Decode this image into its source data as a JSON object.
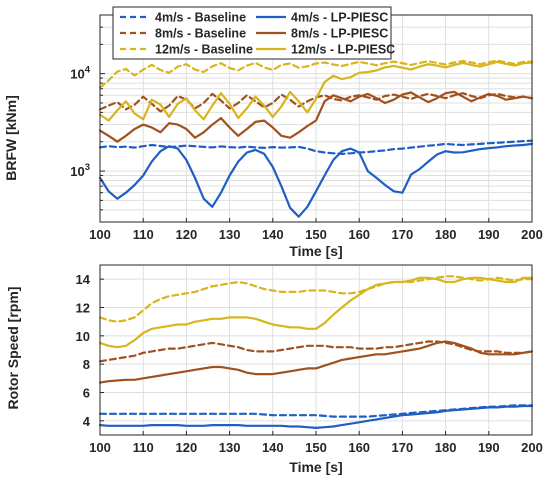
{
  "chart_data": [
    {
      "type": "line",
      "xlabel": "Time [s]",
      "ylabel": "BRFW [kNm]",
      "xlim": [
        100,
        200
      ],
      "ylim": [
        300,
        40000
      ],
      "yscale": "log",
      "xticks": [
        100,
        110,
        120,
        130,
        140,
        150,
        160,
        170,
        180,
        190,
        200
      ],
      "xtick_labels": [
        "100",
        "110",
        "120",
        "130",
        "140",
        "150",
        "160",
        "170",
        "180",
        "190",
        "200"
      ],
      "ytick_labels": [
        {
          "value": 1000,
          "base": "10",
          "exp": "3"
        },
        {
          "value": 10000,
          "base": "10",
          "exp": "4"
        }
      ],
      "grid": true,
      "legend": {
        "placement": "top-center",
        "columns": 2,
        "entries": [
          {
            "label": "4m/s - Baseline",
            "color": "#1f5fc4",
            "dash": true
          },
          {
            "label": "4m/s - LP-PIESC",
            "color": "#1f5fc4",
            "dash": false
          },
          {
            "label": "8m/s - Baseline",
            "color": "#a0521e",
            "dash": true
          },
          {
            "label": "8m/s - LP-PIESC",
            "color": "#a0521e",
            "dash": false
          },
          {
            "label": "12m/s - Baseline",
            "color": "#d8b51c",
            "dash": true
          },
          {
            "label": "12m/s - LP-PIESC",
            "color": "#d8b51c",
            "dash": false
          }
        ]
      },
      "x": [
        100,
        102,
        104,
        106,
        108,
        110,
        112,
        114,
        116,
        118,
        120,
        122,
        124,
        126,
        128,
        130,
        132,
        134,
        136,
        138,
        140,
        142,
        144,
        146,
        148,
        150,
        152,
        154,
        156,
        158,
        160,
        162,
        164,
        166,
        168,
        170,
        172,
        174,
        176,
        178,
        180,
        182,
        184,
        186,
        188,
        190,
        192,
        194,
        196,
        198,
        200
      ],
      "series": [
        {
          "name": "4m/s - Baseline",
          "color": "#1f5fc4",
          "dash": true,
          "values": [
            1750,
            1800,
            1760,
            1780,
            1740,
            1800,
            1850,
            1810,
            1760,
            1790,
            1820,
            1800,
            1770,
            1750,
            1790,
            1760,
            1740,
            1780,
            1750,
            1730,
            1760,
            1740,
            1750,
            1770,
            1700,
            1600,
            1550,
            1520,
            1500,
            1520,
            1550,
            1570,
            1600,
            1630,
            1680,
            1700,
            1740,
            1780,
            1820,
            1850,
            1900,
            1870,
            1850,
            1880,
            1900,
            1930,
            1950,
            1980,
            2000,
            2030,
            2050
          ]
        },
        {
          "name": "4m/s - LP-PIESC",
          "color": "#1f5fc4",
          "dash": false,
          "values": [
            850,
            620,
            520,
            600,
            720,
            900,
            1250,
            1600,
            1800,
            1700,
            1300,
            850,
            520,
            430,
            600,
            900,
            1250,
            1550,
            1650,
            1500,
            1100,
            700,
            420,
            340,
            430,
            620,
            900,
            1300,
            1600,
            1700,
            1550,
            1000,
            850,
            720,
            620,
            600,
            920,
            1050,
            1250,
            1480,
            1600,
            1550,
            1560,
            1620,
            1680,
            1720,
            1750,
            1800,
            1830,
            1850,
            1900
          ]
        },
        {
          "name": "8m/s - Baseline",
          "color": "#a0521e",
          "dash": true,
          "values": [
            4300,
            4700,
            5100,
            4300,
            4800,
            5800,
            4900,
            4100,
            4700,
            5900,
            5400,
            4400,
            5000,
            6200,
            5300,
            4400,
            5000,
            6000,
            5200,
            4500,
            5000,
            6100,
            5400,
            4600,
            5200,
            5700,
            6000,
            5500,
            5300,
            5800,
            6000,
            5700,
            5400,
            5900,
            6100,
            5800,
            5500,
            5900,
            6200,
            5900,
            5600,
            6000,
            6300,
            5900,
            5600,
            6000,
            6200,
            5900,
            5700,
            5800,
            5600
          ]
        },
        {
          "name": "8m/s - LP-PIESC",
          "color": "#a0521e",
          "dash": false,
          "values": [
            2600,
            2300,
            2000,
            2300,
            2700,
            3000,
            2800,
            2500,
            3100,
            3000,
            2700,
            2200,
            2500,
            3000,
            3500,
            2800,
            2300,
            2700,
            3200,
            3300,
            2800,
            2300,
            2200,
            2500,
            2900,
            3300,
            5200,
            6000,
            5600,
            5200,
            5800,
            6200,
            5600,
            5000,
            5400,
            6100,
            6400,
            5700,
            5100,
            5600,
            6300,
            6500,
            5800,
            5200,
            5700,
            6200,
            5900,
            5400,
            5600,
            5800,
            5600
          ]
        },
        {
          "name": "12m/s - Baseline",
          "color": "#d8b51c",
          "dash": true,
          "values": [
            7200,
            8500,
            10500,
            11200,
            9600,
            11000,
            12300,
            10900,
            10200,
            11800,
            12500,
            11000,
            10400,
            11900,
            12800,
            11400,
            10800,
            12100,
            12900,
            11600,
            10900,
            12300,
            12700,
            11500,
            11900,
            12700,
            13000,
            12400,
            12000,
            12600,
            13200,
            12700,
            12200,
            12800,
            13300,
            12800,
            12300,
            12900,
            13400,
            12900,
            12400,
            13000,
            13500,
            13000,
            12500,
            13100,
            13600,
            13100,
            12600,
            13200,
            13300
          ]
        },
        {
          "name": "12m/s - LP-PIESC",
          "color": "#d8b51c",
          "dash": false,
          "values": [
            3800,
            3300,
            4200,
            5200,
            3900,
            3400,
            5400,
            4800,
            3600,
            4900,
            5600,
            4200,
            3400,
            4700,
            6300,
            4900,
            3500,
            4400,
            5800,
            4700,
            3600,
            4600,
            6500,
            5200,
            4000,
            5500,
            8200,
            9500,
            8800,
            9200,
            10200,
            10400,
            10800,
            11600,
            12000,
            11500,
            11000,
            11800,
            12500,
            12100,
            11600,
            12300,
            12900,
            12300,
            11800,
            12500,
            13200,
            12600,
            12100,
            12800,
            13000
          ]
        }
      ]
    },
    {
      "type": "line",
      "xlabel": "Time [s]",
      "ylabel": "Rotor Speed [rpm]",
      "xlim": [
        100,
        200
      ],
      "ylim": [
        3,
        15
      ],
      "xticks": [
        100,
        110,
        120,
        130,
        140,
        150,
        160,
        170,
        180,
        190,
        200
      ],
      "xtick_labels": [
        "100",
        "110",
        "120",
        "130",
        "140",
        "150",
        "160",
        "170",
        "180",
        "190",
        "200"
      ],
      "yticks": [
        4,
        6,
        8,
        10,
        12,
        14
      ],
      "ytick_labels": [
        "4",
        "6",
        "8",
        "10",
        "12",
        "14"
      ],
      "grid": true,
      "x": [
        100,
        102,
        104,
        106,
        108,
        110,
        112,
        114,
        116,
        118,
        120,
        122,
        124,
        126,
        128,
        130,
        132,
        134,
        136,
        138,
        140,
        142,
        144,
        146,
        148,
        150,
        152,
        154,
        156,
        158,
        160,
        162,
        164,
        166,
        168,
        170,
        172,
        174,
        176,
        178,
        180,
        182,
        184,
        186,
        188,
        190,
        192,
        194,
        196,
        198,
        200
      ],
      "series": [
        {
          "name": "4m/s - Baseline",
          "color": "#1f5fc4",
          "dash": true,
          "values": [
            4.5,
            4.5,
            4.5,
            4.5,
            4.5,
            4.5,
            4.5,
            4.5,
            4.5,
            4.5,
            4.5,
            4.5,
            4.5,
            4.5,
            4.5,
            4.5,
            4.5,
            4.5,
            4.5,
            4.45,
            4.4,
            4.4,
            4.4,
            4.4,
            4.4,
            4.4,
            4.35,
            4.3,
            4.3,
            4.3,
            4.3,
            4.3,
            4.35,
            4.4,
            4.45,
            4.5,
            4.55,
            4.6,
            4.65,
            4.7,
            4.75,
            4.8,
            4.85,
            4.9,
            4.95,
            5.0,
            5.0,
            5.05,
            5.1,
            5.1,
            5.1
          ]
        },
        {
          "name": "4m/s - LP-PIESC",
          "color": "#1f5fc4",
          "dash": false,
          "values": [
            3.7,
            3.65,
            3.65,
            3.65,
            3.65,
            3.65,
            3.7,
            3.7,
            3.7,
            3.7,
            3.65,
            3.65,
            3.65,
            3.7,
            3.7,
            3.7,
            3.7,
            3.65,
            3.65,
            3.65,
            3.65,
            3.65,
            3.6,
            3.6,
            3.55,
            3.5,
            3.55,
            3.6,
            3.7,
            3.8,
            3.9,
            4.0,
            4.1,
            4.2,
            4.3,
            4.4,
            4.45,
            4.5,
            4.55,
            4.6,
            4.7,
            4.75,
            4.8,
            4.85,
            4.9,
            4.95,
            4.95,
            5.0,
            5.0,
            5.05,
            5.05
          ]
        },
        {
          "name": "8m/s - Baseline",
          "color": "#a0521e",
          "dash": true,
          "values": [
            8.2,
            8.3,
            8.4,
            8.5,
            8.6,
            8.8,
            8.9,
            9.0,
            9.1,
            9.1,
            9.2,
            9.3,
            9.4,
            9.5,
            9.4,
            9.3,
            9.2,
            9.0,
            8.9,
            8.9,
            8.9,
            9.0,
            9.1,
            9.2,
            9.3,
            9.3,
            9.3,
            9.2,
            9.2,
            9.2,
            9.1,
            9.1,
            9.1,
            9.2,
            9.2,
            9.3,
            9.4,
            9.5,
            9.6,
            9.6,
            9.5,
            9.4,
            9.2,
            9.0,
            8.9,
            8.9,
            8.9,
            8.8,
            8.8,
            8.8,
            8.9
          ]
        },
        {
          "name": "8m/s - LP-PIESC",
          "color": "#a0521e",
          "dash": false,
          "values": [
            6.7,
            6.8,
            6.85,
            6.9,
            6.9,
            7.0,
            7.1,
            7.2,
            7.3,
            7.4,
            7.5,
            7.6,
            7.7,
            7.8,
            7.8,
            7.7,
            7.6,
            7.4,
            7.3,
            7.3,
            7.3,
            7.4,
            7.5,
            7.6,
            7.7,
            7.7,
            7.9,
            8.1,
            8.3,
            8.4,
            8.5,
            8.6,
            8.7,
            8.7,
            8.8,
            8.9,
            9.0,
            9.1,
            9.3,
            9.5,
            9.6,
            9.5,
            9.3,
            9.1,
            8.8,
            8.7,
            8.7,
            8.7,
            8.7,
            8.8,
            8.9
          ]
        },
        {
          "name": "12m/s - Baseline",
          "color": "#d8b51c",
          "dash": true,
          "values": [
            11.3,
            11.1,
            11.0,
            11.1,
            11.3,
            11.8,
            12.3,
            12.6,
            12.8,
            12.9,
            13.0,
            13.1,
            13.3,
            13.5,
            13.6,
            13.7,
            13.8,
            13.7,
            13.5,
            13.3,
            13.2,
            13.1,
            13.1,
            13.1,
            13.2,
            13.2,
            13.2,
            13.1,
            13.0,
            13.0,
            13.1,
            13.3,
            13.5,
            13.7,
            13.8,
            13.8,
            13.8,
            13.9,
            14.0,
            14.1,
            14.2,
            14.2,
            14.1,
            14.0,
            13.9,
            14.0,
            14.1,
            14.0,
            13.9,
            14.0,
            14.0
          ]
        },
        {
          "name": "12m/s - LP-PIESC",
          "color": "#d8b51c",
          "dash": false,
          "values": [
            9.5,
            9.3,
            9.2,
            9.3,
            9.7,
            10.2,
            10.5,
            10.6,
            10.7,
            10.8,
            10.8,
            11.0,
            11.1,
            11.2,
            11.2,
            11.3,
            11.3,
            11.3,
            11.2,
            11.0,
            10.8,
            10.7,
            10.6,
            10.6,
            10.5,
            10.5,
            10.9,
            11.5,
            12.0,
            12.5,
            12.9,
            13.3,
            13.6,
            13.7,
            13.8,
            13.8,
            13.9,
            14.1,
            14.1,
            14.0,
            13.8,
            13.8,
            14.0,
            14.1,
            14.1,
            14.0,
            13.9,
            13.8,
            13.8,
            14.1,
            14.1
          ]
        }
      ]
    }
  ]
}
